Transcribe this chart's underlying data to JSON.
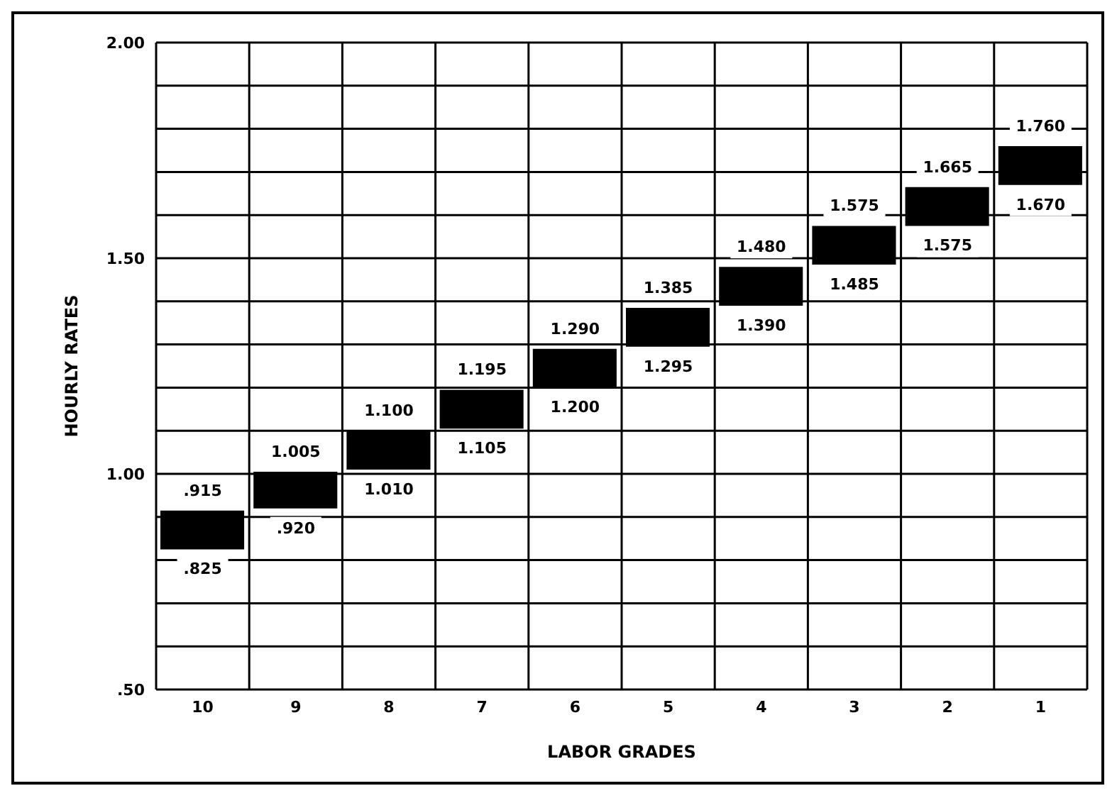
{
  "chart_data": {
    "type": "bar",
    "xlabel": "LABOR GRADES",
    "ylabel": "HOURLY RATES",
    "categories": [
      "10",
      "9",
      "8",
      "7",
      "6",
      "5",
      "4",
      "3",
      "2",
      "1"
    ],
    "base": [
      0.825,
      0.92,
      1.01,
      1.105,
      1.2,
      1.295,
      1.39,
      1.485,
      1.575,
      1.67
    ],
    "values": [
      0.09,
      0.085,
      0.09,
      0.09,
      0.09,
      0.09,
      0.09,
      0.09,
      0.09,
      0.09
    ],
    "color": "#000000",
    "ylim": [
      0.5,
      2.0
    ],
    "yticks": [
      {
        "value": 0.5,
        "label": ".50"
      },
      {
        "value": 0.6,
        "label": null
      },
      {
        "value": 0.7,
        "label": null
      },
      {
        "value": 0.8,
        "label": null
      },
      {
        "value": 0.9,
        "label": null
      },
      {
        "value": 1.0,
        "label": "1.00"
      },
      {
        "value": 1.1,
        "label": null
      },
      {
        "value": 1.2,
        "label": null
      },
      {
        "value": 1.3,
        "label": null
      },
      {
        "value": 1.4,
        "label": null
      },
      {
        "value": 1.5,
        "label": "1.50"
      },
      {
        "value": 1.6,
        "label": null
      },
      {
        "value": 1.7,
        "label": null
      },
      {
        "value": 1.8,
        "label": null
      },
      {
        "value": 1.9,
        "label": null
      },
      {
        "value": 2.0,
        "label": "2.00"
      }
    ],
    "grid": true,
    "legend": false,
    "annotations": [
      {
        "text": ".915",
        "x": "10",
        "y": 0.915
      },
      {
        "text": ".825",
        "x": "10",
        "y": 0.825
      },
      {
        "text": "1.005",
        "x": "9",
        "y": 1.005
      },
      {
        "text": ".920",
        "x": "9",
        "y": 0.92
      },
      {
        "text": "1.100",
        "x": "8",
        "y": 1.1
      },
      {
        "text": "1.010",
        "x": "8",
        "y": 1.01
      },
      {
        "text": "1.195",
        "x": "7",
        "y": 1.195
      },
      {
        "text": "1.105",
        "x": "7",
        "y": 1.105
      },
      {
        "text": "1.290",
        "x": "6",
        "y": 1.29
      },
      {
        "text": "1.200",
        "x": "6",
        "y": 1.2
      },
      {
        "text": "1.385",
        "x": "5",
        "y": 1.385
      },
      {
        "text": "1.295",
        "x": "5",
        "y": 1.295
      },
      {
        "text": "1.480",
        "x": "4",
        "y": 1.48
      },
      {
        "text": "1.390",
        "x": "4",
        "y": 1.39
      },
      {
        "text": "1.575",
        "x": "3",
        "y": 1.575
      },
      {
        "text": "1.485",
        "x": "3",
        "y": 1.485
      },
      {
        "text": "1.665",
        "x": "2",
        "y": 1.665
      },
      {
        "text": "1.575",
        "x": "2",
        "y": 1.575
      },
      {
        "text": "1.760",
        "x": "1",
        "y": 1.76
      },
      {
        "text": "1.670",
        "x": "1",
        "y": 1.67
      }
    ]
  }
}
